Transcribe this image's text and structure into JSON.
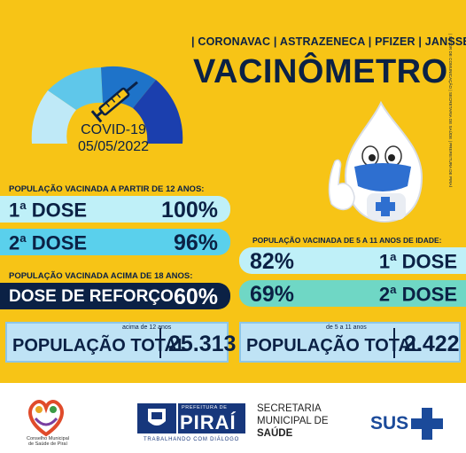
{
  "header": {
    "vaccines": "| CORONAVAC | ASTRAZENECA | PFIZER | JANSSEN",
    "title": "VACINÔMETRO",
    "side_text": "| SETOR DE COMUNICAÇÃO | SECRETARIA DE SAÚDE | PREFEITURA DE PIRAÍ"
  },
  "gauge": {
    "disease": "COVID-19",
    "date": "05/05/2022",
    "colors": [
      "#bfe9f7",
      "#5fc7ea",
      "#1e73c9",
      "#1b3fae"
    ]
  },
  "adults12": {
    "label": "POPULAÇÃO VACINADA  A PARTIR DE 12 ANOS:",
    "first_name": "DOSE",
    "first_value": "100%",
    "second_name": "DOSE",
    "second_value": "96%"
  },
  "adults18": {
    "label": "POPULAÇÃO VACINADA  ACIMA DE 18 ANOS:",
    "booster_name": "DOSE  DE REFORÇO",
    "booster_value": "60%"
  },
  "kids": {
    "label": "POPULAÇÃO VACINADA DE 5 A 11 ANOS DE IDADE:",
    "first_value": "82%",
    "first_name": "DOSE",
    "second_value": "69%",
    "second_name": "DOSE"
  },
  "ordinals": {
    "one": "1",
    "two": "2",
    "sup": "a"
  },
  "totals": {
    "left_sub": "acima de 12 anos",
    "left_label": "POPULAÇÃO TOTAL",
    "left_value": "25.313",
    "right_sub": "de 5 a 11 anos",
    "right_label": "POPULAÇÃO TOTAL",
    "right_value": "2.422"
  },
  "footer": {
    "council_line1": "Conselho Municipal",
    "council_line2": "de Saúde de Piraí",
    "pref_small": "PREFEITURA DE",
    "pref_name": "PIRAÍ",
    "pref_tag": "TRABALHANDO COM DIÁLOGO",
    "sec_line1": "SECRETARIA",
    "sec_line2": "MUNICIPAL DE",
    "sec_line3": "SAÚDE",
    "sus": "SUS"
  },
  "colors": {
    "background": "#f7c416",
    "navy": "#0b2145",
    "light_cyan": "#bff0f8",
    "cyan": "#5ad0ec",
    "mint": "#6fd7c5"
  },
  "icons": [
    "syringe-icon",
    "drop-mascot-icon",
    "cross-icon",
    "heart-family-icon",
    "coat-of-arms-icon",
    "sus-cross-icon"
  ]
}
